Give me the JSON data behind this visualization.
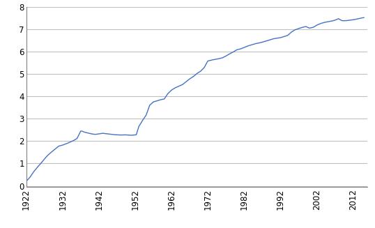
{
  "line_color": "#4472C4",
  "line_width": 1.0,
  "background_color": "#ffffff",
  "grid_color": "#c0c0c0",
  "xlim": [
    1922,
    2016
  ],
  "ylim": [
    -0.05,
    8
  ],
  "yticks": [
    0,
    1,
    2,
    3,
    4,
    5,
    6,
    7,
    8
  ],
  "xtick_labels": [
    "1922",
    "1932",
    "1942",
    "1952",
    "1962",
    "1972",
    "1982",
    "1992",
    "2002",
    "2012"
  ],
  "xtick_positions": [
    1922,
    1932,
    1942,
    1952,
    1962,
    1972,
    1982,
    1992,
    2002,
    2012
  ],
  "tick_fontsize": 8.5,
  "keypoints_years": [
    1922,
    1923,
    1924,
    1925,
    1926,
    1927,
    1928,
    1929,
    1930,
    1931,
    1932,
    1933,
    1934,
    1935,
    1936,
    1937,
    1937.3,
    1938,
    1939,
    1940,
    1941,
    1942,
    1943,
    1944,
    1945,
    1946,
    1947,
    1948,
    1949,
    1950,
    1951,
    1952,
    1952.3,
    1953,
    1954,
    1955,
    1956,
    1957,
    1958,
    1959,
    1960,
    1961,
    1962,
    1963,
    1964,
    1965,
    1966,
    1967,
    1968,
    1969,
    1970,
    1971,
    1972,
    1973,
    1974,
    1975,
    1976,
    1977,
    1978,
    1979,
    1980,
    1981,
    1982,
    1983,
    1984,
    1985,
    1986,
    1987,
    1988,
    1989,
    1990,
    1991,
    1992,
    1993,
    1994,
    1995,
    1996,
    1997,
    1998,
    1999,
    2000,
    2001,
    2002,
    2003,
    2004,
    2005,
    2006,
    2007,
    2008,
    2009,
    2010,
    2011,
    2012,
    2013,
    2014,
    2015
  ],
  "keypoints_values": [
    0.2,
    0.38,
    0.62,
    0.82,
    1.0,
    1.2,
    1.38,
    1.52,
    1.65,
    1.78,
    1.82,
    1.88,
    1.95,
    2.02,
    2.12,
    2.45,
    2.45,
    2.4,
    2.36,
    2.32,
    2.3,
    2.32,
    2.35,
    2.33,
    2.31,
    2.29,
    2.28,
    2.27,
    2.28,
    2.27,
    2.26,
    2.28,
    2.28,
    2.65,
    2.92,
    3.15,
    3.6,
    3.75,
    3.8,
    3.85,
    3.88,
    4.12,
    4.28,
    4.38,
    4.45,
    4.52,
    4.65,
    4.78,
    4.88,
    5.02,
    5.12,
    5.28,
    5.58,
    5.62,
    5.65,
    5.68,
    5.72,
    5.8,
    5.9,
    5.98,
    6.08,
    6.12,
    6.18,
    6.25,
    6.3,
    6.35,
    6.38,
    6.42,
    6.47,
    6.52,
    6.57,
    6.6,
    6.62,
    6.67,
    6.72,
    6.87,
    6.97,
    7.03,
    7.08,
    7.12,
    7.05,
    7.08,
    7.18,
    7.25,
    7.3,
    7.33,
    7.36,
    7.4,
    7.47,
    7.38,
    7.38,
    7.4,
    7.42,
    7.45,
    7.49,
    7.52
  ]
}
